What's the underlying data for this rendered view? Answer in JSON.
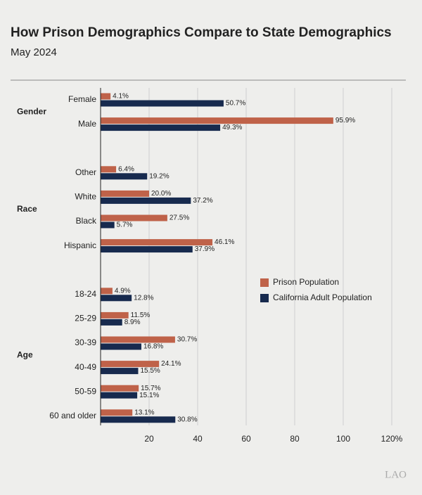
{
  "chart_data": {
    "type": "grouped-hbar",
    "title": "How Prison Demographics Compare to State Demographics",
    "subtitle": "May 2024",
    "groups": [
      {
        "label": "Gender",
        "categories": [
          "Female",
          "Male"
        ]
      },
      {
        "label": "Race",
        "categories": [
          "Other",
          "White",
          "Black",
          "Hispanic"
        ]
      },
      {
        "label": "Age",
        "categories": [
          "18-24",
          "25-29",
          "30-39",
          "40-49",
          "50-59",
          "60 and older"
        ]
      }
    ],
    "series": [
      {
        "name": "Prison Population",
        "color": "#bf6249",
        "values": [
          4.1,
          95.9,
          6.4,
          20.0,
          27.5,
          46.1,
          4.9,
          11.5,
          30.7,
          24.1,
          15.7,
          13.1
        ],
        "value_labels": [
          "4.1%",
          "95.9%",
          "6.4%",
          "20.0%",
          "27.5%",
          "46.1%",
          "4.9%",
          "11.5%",
          "30.7%",
          "24.1%",
          "15.7%",
          "13.1%"
        ]
      },
      {
        "name": "California Adult Population",
        "color": "#172a4e",
        "values": [
          50.7,
          49.3,
          19.2,
          37.2,
          5.7,
          37.9,
          12.8,
          8.9,
          16.8,
          15.5,
          15.1,
          30.8
        ],
        "value_labels": [
          "50.7%",
          "49.3%",
          "19.2%",
          "37.2%",
          "5.7%",
          "37.9%",
          "12.8%",
          "8.9%",
          "16.8%",
          "15.5%",
          "15.1%",
          "30.8%"
        ]
      }
    ],
    "xlim": [
      0,
      120
    ],
    "xticks": [
      20,
      40,
      60,
      80,
      100,
      {
        "value": 120,
        "label": "120%"
      }
    ],
    "grid": true,
    "legend": "right",
    "logo": "LAO"
  }
}
